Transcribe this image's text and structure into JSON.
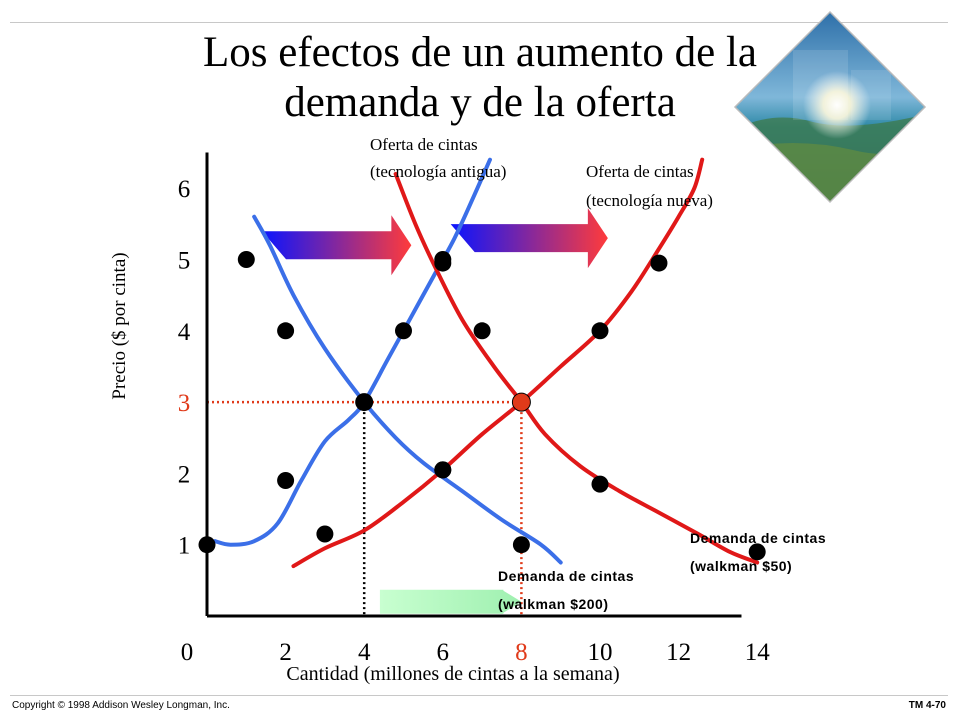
{
  "slide": {
    "title_line1": "Los efectos de un aumento de la",
    "title_line2": "demanda y de la oferta",
    "copyright": "Copyright © 1998 Addison Wesley Longman, Inc.",
    "slide_id": "TM 4-70"
  },
  "chart_data": {
    "type": "line",
    "xlabel": "Cantidad (millones de cintas a la semana)",
    "ylabel": "Precio ($ por cinta)",
    "xlim": [
      0,
      14
    ],
    "ylim": [
      0,
      6.5
    ],
    "x_ticks": [
      "0",
      "2",
      "4",
      "6",
      "8",
      "10",
      "12",
      "14"
    ],
    "y_ticks": [
      "1",
      "2",
      "3",
      "4",
      "5",
      "6"
    ],
    "highlight_x_tick": "8",
    "highlight_y_tick": "3",
    "colors": {
      "old": "#3b6fe8",
      "new": "#e01818",
      "highlight": "#e03a1a",
      "axis": "#000000"
    },
    "series": [
      {
        "name": "Oferta de cintas (tecnología antigua)",
        "label_line1": "Oferta de cintas",
        "label_line2": "(tecnología antigua)",
        "kind": "supply",
        "color": "old",
        "curve": [
          [
            0.2,
            1.05
          ],
          [
            0.6,
            1.0
          ],
          [
            1.2,
            1.05
          ],
          [
            1.8,
            1.3
          ],
          [
            2.4,
            1.9
          ],
          [
            3.0,
            2.45
          ],
          [
            3.6,
            2.75
          ],
          [
            4.0,
            3.0
          ],
          [
            4.6,
            3.6
          ],
          [
            5.2,
            4.2
          ],
          [
            5.8,
            4.8
          ],
          [
            6.3,
            5.3
          ],
          [
            6.8,
            5.9
          ],
          [
            7.2,
            6.4
          ]
        ],
        "points": [
          [
            0,
            1
          ],
          [
            2,
            1.9
          ],
          [
            4,
            3
          ],
          [
            5,
            4
          ],
          [
            6,
            5
          ]
        ]
      },
      {
        "name": "Oferta de cintas (tecnología nueva)",
        "label_line1": "Oferta de cintas",
        "label_line2": "(tecnología nueva)",
        "kind": "supply",
        "color": "new",
        "curve": [
          [
            2.2,
            0.7
          ],
          [
            3.0,
            0.95
          ],
          [
            4.0,
            1.2
          ],
          [
            5.0,
            1.6
          ],
          [
            6.0,
            2.05
          ],
          [
            7.0,
            2.55
          ],
          [
            8.0,
            3.0
          ],
          [
            9.0,
            3.5
          ],
          [
            10.0,
            4.0
          ],
          [
            10.8,
            4.55
          ],
          [
            11.5,
            5.15
          ],
          [
            12.0,
            5.6
          ],
          [
            12.4,
            6.0
          ],
          [
            12.6,
            6.4
          ]
        ],
        "points": [
          [
            3,
            1.15
          ],
          [
            6,
            2.05
          ],
          [
            8,
            3
          ],
          [
            10,
            4
          ],
          [
            11.5,
            4.95
          ]
        ]
      },
      {
        "name": "Demanda de cintas (walkman $200)",
        "label_line1": "Demanda de cintas",
        "label_line2": "(walkman $200)",
        "kind": "demand",
        "color": "old",
        "curve": [
          [
            1.2,
            5.6
          ],
          [
            1.6,
            5.2
          ],
          [
            2.2,
            4.5
          ],
          [
            3.0,
            3.75
          ],
          [
            4.0,
            3.0
          ],
          [
            4.8,
            2.5
          ],
          [
            5.5,
            2.15
          ],
          [
            6.5,
            1.75
          ],
          [
            7.5,
            1.35
          ],
          [
            8.5,
            1.0
          ],
          [
            9.0,
            0.75
          ]
        ],
        "points": [
          [
            1,
            5
          ],
          [
            2,
            4
          ],
          [
            4,
            3
          ],
          [
            6,
            2.05
          ],
          [
            8,
            1.0
          ]
        ]
      },
      {
        "name": "Demanda de cintas (walkman $50)",
        "label_line1": "Demanda de cintas",
        "label_line2": "(walkman $50)",
        "kind": "demand",
        "color": "new",
        "curve": [
          [
            4.8,
            6.2
          ],
          [
            5.3,
            5.5
          ],
          [
            5.8,
            4.9
          ],
          [
            6.5,
            4.15
          ],
          [
            7.3,
            3.5
          ],
          [
            8.0,
            3.0
          ],
          [
            8.6,
            2.55
          ],
          [
            9.5,
            2.1
          ],
          [
            10.5,
            1.75
          ],
          [
            11.5,
            1.45
          ],
          [
            12.5,
            1.15
          ],
          [
            13.3,
            0.9
          ],
          [
            14.0,
            0.75
          ]
        ],
        "points": [
          [
            6,
            4.95
          ],
          [
            7,
            4.0
          ],
          [
            8,
            3
          ],
          [
            10,
            1.85
          ],
          [
            14,
            0.9
          ]
        ]
      }
    ],
    "equilibria": [
      {
        "x": 4,
        "y": 3,
        "color": "old"
      },
      {
        "x": 8,
        "y": 3,
        "color": "highlight"
      }
    ],
    "shift_arrows": [
      {
        "meaning": "demand shift",
        "from": [
          1.4,
          5.2
        ],
        "to": [
          5.2,
          5.2
        ],
        "gradient": [
          "#0a14ff",
          "#ff3b3b"
        ]
      },
      {
        "meaning": "supply shift",
        "from": [
          6.2,
          5.3
        ],
        "to": [
          10.2,
          5.3
        ],
        "gradient": [
          "#0a14ff",
          "#ff3b3b"
        ]
      },
      {
        "meaning": "quantity change",
        "from": [
          4.4,
          0.2
        ],
        "to": [
          8.0,
          0.2
        ],
        "gradient": [
          "#c8ffd0",
          "#9ff0b0"
        ]
      }
    ]
  }
}
